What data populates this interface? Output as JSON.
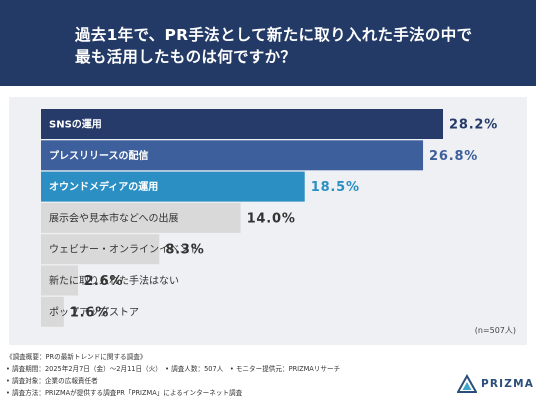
{
  "header": {
    "title_line1": "過去1年で、PR手法として新たに取り入れた手法の中で",
    "title_line2": "最も活用したものは何ですか？"
  },
  "chart_data": {
    "type": "bar",
    "orientation": "horizontal",
    "categories": [
      "SNSの運用",
      "プレスリリースの配信",
      "オウンドメディアの運用",
      "展示会や見本市などへの出展",
      "ウェビナー・オンラインイベント",
      "新たに取り入れた手法はない",
      "ポップアップストア"
    ],
    "values": [
      28.2,
      26.8,
      18.5,
      14.0,
      8.3,
      2.6,
      1.6
    ],
    "value_labels": [
      "28.2%",
      "26.8%",
      "18.5%",
      "14.0%",
      "8.3%",
      "2.6%",
      "1.6%"
    ],
    "colors": [
      "#263b6a",
      "#3d5f9c",
      "#2b8fc3",
      "#d9d9d9",
      "#d9d9d9",
      "#d9d9d9",
      "#d9d9d9"
    ],
    "label_colors": [
      "#ffffff",
      "#ffffff",
      "#ffffff",
      "#333333",
      "#333333",
      "#333333",
      "#333333"
    ],
    "value_colors": [
      "#263b6a",
      "#3d5f9c",
      "#2b8fc3",
      "#333333",
      "#333333",
      "#333333",
      "#333333"
    ],
    "xlim": [
      0,
      28.2
    ],
    "grid": false,
    "note": "(n=507人)"
  },
  "footer": {
    "line1": "《調査概要：PRの最新トレンドに関する調査》",
    "line2": "• 調査期間：2025年2月7日（金）〜2月11日（火）　• 調査人数：507人　• モニター提供元：PRIZMAリサーチ",
    "line3": "• 調査対象：企業の広報責任者",
    "line4": "• 調査方法：PRIZMAが提供する調査PR「PRIZMA」によるインターネット調査"
  },
  "logo": {
    "text": "PRIZMA",
    "icon": "prizma-logo-icon",
    "accent": "#3fa8c8"
  }
}
